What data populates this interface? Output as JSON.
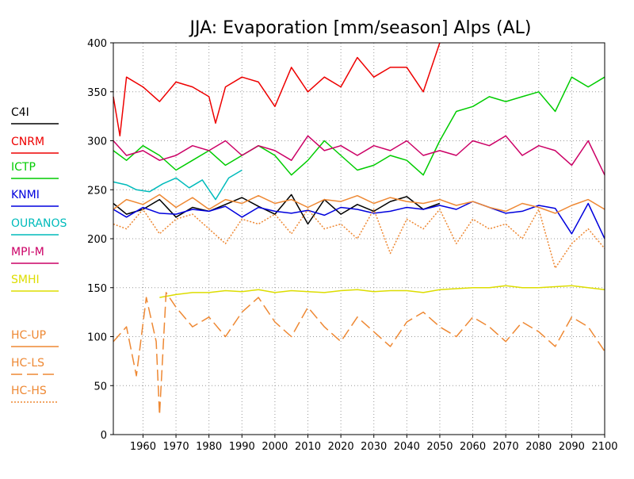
{
  "chart_data": {
    "type": "line",
    "title": "JJA: Evaporation [mm/season] Alps (AL)",
    "xlabel": "",
    "ylabel": "",
    "xlim": [
      1951,
      2100
    ],
    "ylim": [
      0,
      400
    ],
    "x_ticks": [
      1960,
      1970,
      1980,
      1990,
      2000,
      2010,
      2020,
      2030,
      2040,
      2050,
      2060,
      2070,
      2080,
      2090,
      2100
    ],
    "y_ticks": [
      0,
      50,
      100,
      150,
      200,
      250,
      300,
      350,
      400
    ],
    "grid": true,
    "legend_position": "left",
    "series": [
      {
        "name": "C4I",
        "color": "#000000",
        "dash": "solid",
        "x": [
          1951,
          1955,
          1960,
          1965,
          1970,
          1975,
          1980,
          1985,
          1990,
          1995,
          2000,
          2005,
          2010,
          2015,
          2020,
          2025,
          2030,
          2035,
          2040,
          2045,
          2050
        ],
        "y": [
          236,
          225,
          230,
          240,
          222,
          232,
          228,
          235,
          242,
          233,
          225,
          245,
          215,
          240,
          225,
          235,
          228,
          238,
          243,
          230,
          236
        ]
      },
      {
        "name": "CNRM",
        "color": "#ee0000",
        "dash": "solid",
        "x": [
          1951,
          1953,
          1955,
          1960,
          1965,
          1970,
          1975,
          1980,
          1982,
          1985,
          1990,
          1995,
          2000,
          2005,
          2010,
          2015,
          2020,
          2025,
          2030,
          2035,
          2040,
          2045,
          2050
        ],
        "y": [
          345,
          305,
          365,
          355,
          340,
          360,
          355,
          345,
          318,
          355,
          365,
          360,
          335,
          375,
          350,
          365,
          355,
          385,
          365,
          375,
          375,
          350,
          400
        ]
      },
      {
        "name": "ICTP",
        "color": "#00cc00",
        "dash": "solid",
        "x": [
          1951,
          1955,
          1960,
          1965,
          1970,
          1975,
          1980,
          1985,
          1990,
          1995,
          2000,
          2005,
          2010,
          2015,
          2020,
          2025,
          2030,
          2035,
          2040,
          2045,
          2050,
          2055,
          2060,
          2065,
          2070,
          2075,
          2080,
          2085,
          2090,
          2095,
          2100
        ],
        "y": [
          290,
          280,
          295,
          285,
          270,
          280,
          290,
          275,
          285,
          295,
          285,
          265,
          280,
          300,
          285,
          270,
          275,
          285,
          280,
          265,
          300,
          330,
          335,
          345,
          340,
          345,
          350,
          330,
          365,
          355,
          365
        ]
      },
      {
        "name": "KNMI",
        "color": "#0000dd",
        "dash": "solid",
        "x": [
          1951,
          1955,
          1960,
          1965,
          1970,
          1975,
          1980,
          1985,
          1990,
          1995,
          2000,
          2005,
          2010,
          2015,
          2020,
          2025,
          2030,
          2035,
          2040,
          2045,
          2050,
          2055,
          2060,
          2065,
          2070,
          2075,
          2080,
          2085,
          2090,
          2095,
          2100
        ],
        "y": [
          230,
          222,
          232,
          226,
          225,
          230,
          228,
          233,
          222,
          232,
          228,
          226,
          229,
          224,
          232,
          230,
          226,
          228,
          232,
          230,
          234,
          230,
          238,
          232,
          226,
          228,
          234,
          231,
          205,
          236,
          200
        ]
      },
      {
        "name": "OURANOS",
        "color": "#00bbbb",
        "dash": "solid",
        "x": [
          1951,
          1955,
          1958,
          1962,
          1966,
          1970,
          1974,
          1978,
          1982,
          1986,
          1990
        ],
        "y": [
          258,
          255,
          250,
          248,
          256,
          262,
          252,
          260,
          240,
          262,
          270
        ]
      },
      {
        "name": "MPI-M",
        "color": "#cc0066",
        "dash": "solid",
        "x": [
          1951,
          1955,
          1960,
          1965,
          1970,
          1975,
          1980,
          1985,
          1990,
          1995,
          2000,
          2005,
          2010,
          2015,
          2020,
          2025,
          2030,
          2035,
          2040,
          2045,
          2050,
          2055,
          2060,
          2065,
          2070,
          2075,
          2080,
          2085,
          2090,
          2095,
          2100
        ],
        "y": [
          300,
          285,
          290,
          280,
          285,
          295,
          290,
          300,
          285,
          295,
          290,
          280,
          305,
          290,
          295,
          285,
          295,
          290,
          300,
          285,
          290,
          285,
          300,
          295,
          305,
          285,
          295,
          290,
          275,
          300,
          265
        ]
      },
      {
        "name": "SMHI",
        "color": "#dddd00",
        "dash": "solid",
        "x": [
          1965,
          1970,
          1975,
          1980,
          1985,
          1990,
          1995,
          2000,
          2005,
          2010,
          2015,
          2020,
          2025,
          2030,
          2035,
          2040,
          2045,
          2050,
          2055,
          2060,
          2065,
          2070,
          2075,
          2080,
          2085,
          2090,
          2095,
          2100
        ],
        "y": [
          140,
          143,
          145,
          145,
          147,
          146,
          148,
          145,
          147,
          146,
          145,
          147,
          148,
          146,
          147,
          147,
          145,
          148,
          149,
          150,
          150,
          152,
          150,
          150,
          151,
          152,
          150,
          148
        ]
      },
      {
        "name": "HC-UP",
        "color": "#ee8833",
        "dash": "solid",
        "x": [
          1951,
          1955,
          1960,
          1965,
          1970,
          1975,
          1980,
          1985,
          1990,
          1995,
          2000,
          2005,
          2010,
          2015,
          2020,
          2025,
          2030,
          2035,
          2040,
          2045,
          2050,
          2055,
          2060,
          2065,
          2070,
          2075,
          2080,
          2085,
          2090,
          2095,
          2100
        ],
        "y": [
          230,
          240,
          235,
          245,
          232,
          242,
          230,
          240,
          236,
          244,
          236,
          240,
          232,
          240,
          238,
          244,
          236,
          242,
          238,
          236,
          240,
          234,
          238,
          232,
          228,
          236,
          232,
          226,
          234,
          240,
          230
        ]
      },
      {
        "name": "HC-LS",
        "color": "#ee8833",
        "dash": "14,6",
        "x": [
          1951,
          1955,
          1958,
          1961,
          1964,
          1965,
          1967,
          1970,
          1975,
          1980,
          1985,
          1990,
          1995,
          2000,
          2005,
          2010,
          2015,
          2020,
          2025,
          2030,
          2035,
          2040,
          2045,
          2050,
          2055,
          2060,
          2065,
          2070,
          2075,
          2080,
          2085,
          2090,
          2095,
          2100
        ],
        "y": [
          95,
          110,
          60,
          140,
          95,
          20,
          145,
          130,
          110,
          120,
          100,
          125,
          140,
          115,
          100,
          130,
          110,
          95,
          120,
          105,
          90,
          115,
          125,
          110,
          100,
          120,
          110,
          95,
          115,
          105,
          90,
          120,
          110,
          85
        ]
      },
      {
        "name": "HC-HS",
        "color": "#ee8833",
        "dash": "2,2",
        "x": [
          1951,
          1955,
          1960,
          1965,
          1970,
          1975,
          1980,
          1985,
          1990,
          1995,
          2000,
          2005,
          2010,
          2015,
          2020,
          2025,
          2030,
          2035,
          2040,
          2045,
          2050,
          2055,
          2060,
          2065,
          2070,
          2075,
          2080,
          2085,
          2090,
          2095,
          2100
        ],
        "y": [
          215,
          210,
          230,
          205,
          220,
          225,
          210,
          195,
          220,
          215,
          225,
          205,
          230,
          210,
          215,
          200,
          230,
          185,
          220,
          210,
          230,
          195,
          220,
          210,
          215,
          200,
          230,
          170,
          195,
          210,
          190
        ]
      }
    ]
  }
}
